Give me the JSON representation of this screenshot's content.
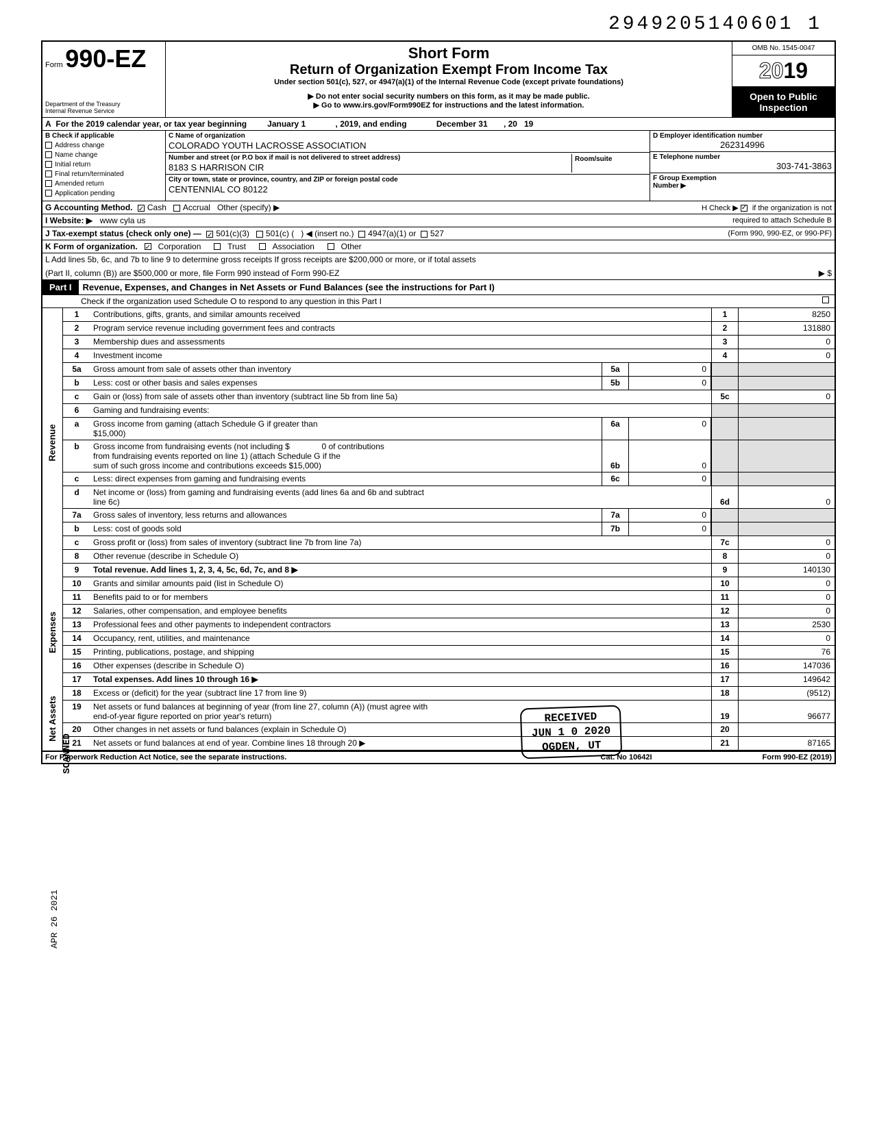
{
  "top_number": "2949205140601 1",
  "header": {
    "form_prefix": "Form",
    "form_number": "990-EZ",
    "short_form": "Short Form",
    "title": "Return of Organization Exempt From Income Tax",
    "under_section": "Under section 501(c), 527, or 4947(a)(1) of the Internal Revenue Code (except private foundations)",
    "do_not": "▶ Do not enter social security numbers on this form, as it may be made public.",
    "goto": "▶ Go to www.irs.gov/Form990EZ for instructions and the latest information.",
    "dept1": "Department of the Treasury",
    "dept2": "Internal Revenue Service",
    "omb": "OMB No. 1545-0047",
    "year": "2019",
    "open_public1": "Open to Public",
    "open_public2": "Inspection"
  },
  "row_a": {
    "prefix": "A",
    "text1": "For the 2019 calendar year, or tax year beginning",
    "begin": "January 1",
    "text2": ", 2019, and ending",
    "end": "December 31",
    "text3": ", 20",
    "yy": "19"
  },
  "col_b": {
    "header": "B  Check if applicable",
    "items": [
      "Address change",
      "Name change",
      "Initial return",
      "Final return/terminated",
      "Amended return",
      "Application pending"
    ]
  },
  "col_c": {
    "name_label": "C  Name of organization",
    "name": "COLORADO YOUTH LACROSSE ASSOCIATION",
    "street_label": "Number and street (or P.O  box if mail is not delivered to street address)",
    "street": "8183 S HARRISON CIR",
    "room_label": "Room/suite",
    "city_label": "City or town, state or province, country, and ZIP or foreign postal code",
    "city": "CENTENNIAL CO 80122"
  },
  "col_d": {
    "ein_label": "D Employer identification number",
    "ein": "262314996",
    "phone_label": "E Telephone number",
    "phone": "303-741-3863",
    "group_label": "F Group Exemption",
    "group_label2": "Number ▶"
  },
  "row_g": {
    "label": "G  Accounting Method.",
    "cash": "Cash",
    "accrual": "Accrual",
    "other": "Other (specify) ▶"
  },
  "row_h": {
    "text1": "H  Check ▶",
    "text2": "if the organization is not",
    "text3": "required to attach Schedule B",
    "text4": "(Form 990, 990-EZ, or 990-PF)"
  },
  "row_i": {
    "label": "I   Website: ▶",
    "value": "www cyla us"
  },
  "row_j": {
    "label": "J  Tax-exempt status (check only one) —",
    "opt1": "501(c)(3)",
    "opt2": "501(c) (",
    "opt2b": ") ◀ (insert no.)",
    "opt3": "4947(a)(1) or",
    "opt4": "527"
  },
  "row_k": {
    "label": "K  Form of organization.",
    "opt1": "Corporation",
    "opt2": "Trust",
    "opt3": "Association",
    "opt4": "Other"
  },
  "row_l": {
    "line1": "L  Add lines 5b, 6c, and 7b to line 9 to determine gross receipts  If gross receipts are $200,000 or more, or if total assets",
    "line2": "(Part II, column (B)) are $500,000 or more, file Form 990 instead of Form 990-EZ",
    "arrow": "▶  $"
  },
  "part1": {
    "label": "Part I",
    "title": "Revenue, Expenses, and Changes in Net Assets or Fund Balances (see the instructions for Part I)",
    "sub": "Check if the organization used Schedule O to respond to any question in this Part I"
  },
  "revenue_lines": [
    {
      "num": "1",
      "desc": "Contributions, gifts, grants, and similar amounts received",
      "rnum": "1",
      "rval": "8250"
    },
    {
      "num": "2",
      "desc": "Program service revenue including government fees and contracts",
      "rnum": "2",
      "rval": "131880"
    },
    {
      "num": "3",
      "desc": "Membership dues and assessments",
      "rnum": "3",
      "rval": "0"
    },
    {
      "num": "4",
      "desc": "Investment income",
      "rnum": "4",
      "rval": "0"
    }
  ],
  "line5a": {
    "num": "5a",
    "desc": "Gross amount from sale of assets other than inventory",
    "mnum": "5a",
    "mval": "0"
  },
  "line5b": {
    "num": "b",
    "desc": "Less: cost or other basis and sales expenses",
    "mnum": "5b",
    "mval": "0"
  },
  "line5c": {
    "num": "c",
    "desc": "Gain or (loss) from sale of assets other than inventory (subtract line 5b from line 5a)",
    "rnum": "5c",
    "rval": "0"
  },
  "line6": {
    "num": "6",
    "desc": "Gaming and fundraising events:"
  },
  "line6a": {
    "num": "a",
    "desc1": "Gross income from gaming (attach Schedule G if greater than",
    "desc2": "$15,000)",
    "mnum": "6a",
    "mval": "0"
  },
  "line6b": {
    "num": "b",
    "desc1": "Gross income from fundraising events (not including  $",
    "contrib": "0 of contributions",
    "desc2": "from fundraising events reported on line 1) (attach Schedule G if the",
    "desc3": "sum of such gross income and contributions exceeds $15,000)",
    "mnum": "6b",
    "mval": "0"
  },
  "line6c": {
    "num": "c",
    "desc": "Less: direct expenses from gaming and fundraising events",
    "mnum": "6c",
    "mval": "0"
  },
  "line6d": {
    "num": "d",
    "desc1": "Net income or (loss) from gaming and fundraising events (add lines 6a and 6b and subtract",
    "desc2": "line 6c)",
    "rnum": "6d",
    "rval": "0"
  },
  "line7a": {
    "num": "7a",
    "desc": "Gross sales of inventory, less returns and allowances",
    "mnum": "7a",
    "mval": "0"
  },
  "line7b": {
    "num": "b",
    "desc": "Less: cost of goods sold",
    "mnum": "7b",
    "mval": "0"
  },
  "line7c": {
    "num": "c",
    "desc": "Gross profit or (loss) from sales of inventory (subtract line 7b from line 7a)",
    "rnum": "7c",
    "rval": "0"
  },
  "line8": {
    "num": "8",
    "desc": "Other revenue (describe in Schedule O)",
    "rnum": "8",
    "rval": "0"
  },
  "line9": {
    "num": "9",
    "desc": "Total revenue. Add lines 1, 2, 3, 4, 5c, 6d, 7c, and 8",
    "rnum": "9",
    "rval": "140130",
    "bold": true
  },
  "expense_lines": [
    {
      "num": "10",
      "desc": "Grants and similar amounts paid (list in Schedule O)",
      "rnum": "10",
      "rval": "0"
    },
    {
      "num": "11",
      "desc": "Benefits paid to or for members",
      "rnum": "11",
      "rval": "0"
    },
    {
      "num": "12",
      "desc": "Salaries, other compensation, and employee benefits",
      "rnum": "12",
      "rval": "0"
    },
    {
      "num": "13",
      "desc": "Professional fees and other payments to independent contractors",
      "rnum": "13",
      "rval": "2530"
    },
    {
      "num": "14",
      "desc": "Occupancy, rent, utilities, and maintenance",
      "rnum": "14",
      "rval": "0"
    },
    {
      "num": "15",
      "desc": "Printing, publications, postage, and shipping",
      "rnum": "15",
      "rval": "76"
    },
    {
      "num": "16",
      "desc": "Other expenses (describe in Schedule O)",
      "rnum": "16",
      "rval": "147036"
    },
    {
      "num": "17",
      "desc": "Total expenses. Add lines 10 through 16",
      "rnum": "17",
      "rval": "149642",
      "bold": true,
      "arrow": true
    }
  ],
  "netassets_lines": [
    {
      "num": "18",
      "desc": "Excess or (deficit) for the year (subtract line 17 from line 9)",
      "rnum": "18",
      "rval": "(9512)"
    },
    {
      "num": "19",
      "desc1": "Net assets or fund balances at beginning of year (from line 27, column (A)) (must agree with",
      "desc2": "end-of-year figure reported on prior year's return)",
      "rnum": "19",
      "rval": "96677"
    },
    {
      "num": "20",
      "desc": "Other changes in net assets or fund balances (explain in Schedule O)",
      "rnum": "20",
      "rval": ""
    },
    {
      "num": "21",
      "desc": "Net assets or fund balances at end of year. Combine lines 18 through 20",
      "rnum": "21",
      "rval": "87165",
      "arrow": true
    }
  ],
  "footer": {
    "left": "For Paperwork Reduction Act Notice, see the separate instructions.",
    "center": "Cat. No 10642I",
    "right": "Form 990-EZ (2019)"
  },
  "stamp": {
    "received": "RECEIVED",
    "date": "JUN 1 0 2020",
    "loc": "OGDEN, UT"
  },
  "side_stamps": {
    "scanned": "SCANNED",
    "date": "APR 26 2021"
  },
  "side_labels": {
    "revenue": "Revenue",
    "expenses": "Expenses",
    "netassets": "Net Assets"
  },
  "colors": {
    "black": "#000000",
    "white": "#ffffff",
    "shade": "#e0e0e0"
  }
}
